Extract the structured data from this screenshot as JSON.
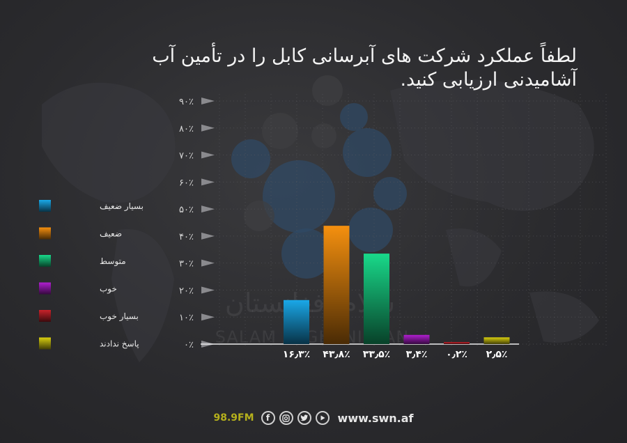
{
  "chart_data": {
    "type": "bar",
    "title": "لطفاً عملکرد شرکت های آبرسانی کابل را در تأمین آب آشامیدنی ارزیابی کنید.",
    "categories": [
      "بسیار ضعیف",
      "ضعیف",
      "متوسط",
      "خوب",
      "بسیار خوب",
      "پاسخ ندادند"
    ],
    "values": [
      16.3,
      43.8,
      33.5,
      3.4,
      0.2,
      2.5
    ],
    "value_labels": [
      "۱۶٫۳٪",
      "۴۳٫۸٪",
      "۳۳٫۵٪",
      "۳٫۴٪",
      "۰٫۲٪",
      "۲٫۵٪"
    ],
    "colors": [
      "#1aa8e8",
      "#f5900f",
      "#19d98a",
      "#b01fd0",
      "#c8222a",
      "#d9cf10"
    ],
    "ylim": [
      0,
      90
    ],
    "yticks": [
      0,
      10,
      20,
      30,
      40,
      50,
      60,
      70,
      80,
      90
    ],
    "ytick_labels": [
      "۰٪",
      "۱۰٪",
      "۲۰٪",
      "۳۰٪",
      "۴۰٪",
      "۵۰٪",
      "۶۰٪",
      "۷۰٪",
      "۸۰٪",
      "۹۰٪"
    ],
    "grid": true,
    "legend": "left"
  },
  "watermark": {
    "text_fa": "سلام افغانستان",
    "text_en": "SALAM AFGHANISTAN"
  },
  "footer": {
    "frequency": "98.9FM",
    "website": "www.swn.af",
    "icons": [
      "facebook-icon",
      "instagram-icon",
      "twitter-icon",
      "youtube-icon"
    ]
  }
}
